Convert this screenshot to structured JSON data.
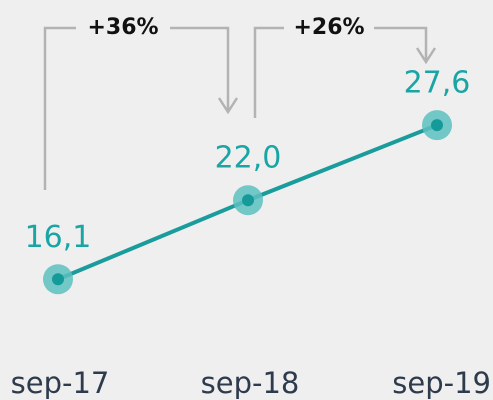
{
  "chart_data": {
    "type": "line",
    "categories": [
      "sep-17",
      "sep-18",
      "sep-19"
    ],
    "values": [
      16.1,
      22.0,
      27.6
    ],
    "value_labels": [
      "16,1",
      "22,0",
      "27,6"
    ],
    "color": "#1a9c9c",
    "ylim": [
      10,
      30
    ],
    "annotations": [
      "+36%",
      "+26%"
    ]
  }
}
